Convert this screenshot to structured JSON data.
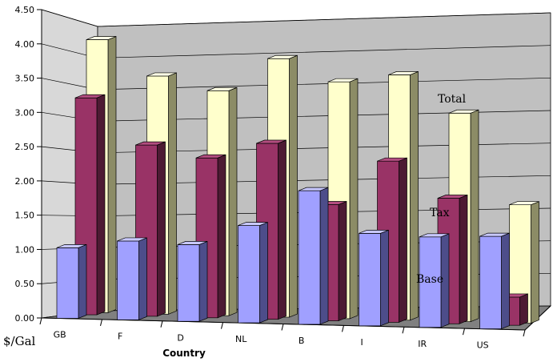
{
  "chart_data": {
    "type": "bar",
    "title": "",
    "xlabel": "Country",
    "ylabel": "$/Gal",
    "ylim": [
      0,
      4.5
    ],
    "yticks": [
      "0.00",
      "0.50",
      "1.00",
      "1.50",
      "2.00",
      "2.50",
      "3.00",
      "3.50",
      "4.00",
      "4.50"
    ],
    "categories": [
      "GB",
      "F",
      "D",
      "NL",
      "B",
      "I",
      "IR",
      "US"
    ],
    "series": [
      {
        "name": "Base",
        "values": [
          1.03,
          1.15,
          1.12,
          1.42,
          1.95,
          1.35,
          1.32,
          1.35
        ]
      },
      {
        "name": "Tax",
        "values": [
          3.23,
          2.55,
          2.38,
          2.62,
          1.73,
          2.4,
          1.87,
          0.42
        ]
      },
      {
        "name": "Total",
        "values": [
          4.15,
          3.62,
          3.42,
          3.93,
          3.6,
          3.73,
          3.17,
          1.8
        ]
      }
    ],
    "grid": true,
    "legend": "inline labels",
    "colors": {
      "Base": {
        "front": "#a0a0ff",
        "side": "#4d4d8a",
        "top": "#c8c8ff"
      },
      "Tax": {
        "front": "#993366",
        "side": "#4d1a33",
        "top": "#b34d80"
      },
      "Total": {
        "front": "#ffffcc",
        "side": "#8c8c66",
        "top": "#ffffe6"
      },
      "back_wall": "#c0c0c0",
      "side_wall": "#d8d8d8",
      "floor": "#808080"
    }
  }
}
